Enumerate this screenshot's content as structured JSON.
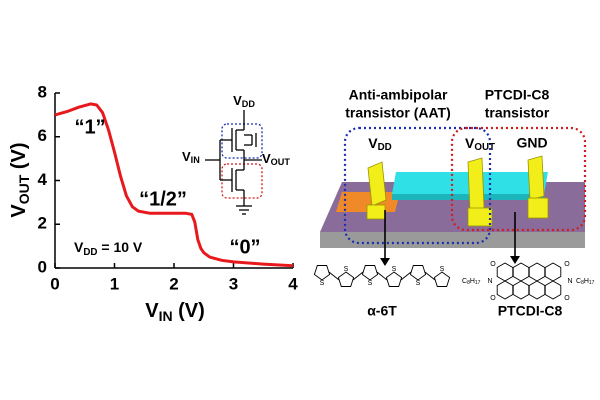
{
  "chart_data": {
    "type": "line",
    "x": [
      0,
      0.2,
      0.4,
      0.6,
      0.7,
      0.8,
      0.9,
      1.0,
      1.1,
      1.2,
      1.3,
      1.4,
      1.6,
      1.8,
      2.0,
      2.2,
      2.3,
      2.35,
      2.4,
      2.45,
      2.5,
      2.6,
      2.8,
      3.0,
      3.5,
      4.0
    ],
    "values": [
      7.0,
      7.15,
      7.35,
      7.5,
      7.45,
      7.1,
      6.3,
      5.3,
      4.2,
      3.3,
      2.8,
      2.6,
      2.5,
      2.5,
      2.5,
      2.5,
      2.45,
      2.1,
      1.3,
      0.9,
      0.7,
      0.5,
      0.35,
      0.28,
      0.18,
      0.1
    ],
    "color": "#e8191c",
    "xlim": [
      0,
      4
    ],
    "ylim": [
      0,
      8
    ],
    "xticks": [
      0,
      1,
      2,
      3,
      4
    ],
    "yticks": [
      0,
      2,
      4,
      6,
      8
    ],
    "x_label": {
      "symbol": "V",
      "subscript": "IN",
      "unit": " (V)"
    },
    "y_label": {
      "symbol": "V",
      "subscript": "OUT",
      "unit": " (V)"
    },
    "annotations": {
      "high": "“1”",
      "half": "“1/2”",
      "low": "“0”",
      "supply": {
        "symbol": "V",
        "subscript": "DD",
        "rest": " = 10 V"
      }
    }
  },
  "diagram": {
    "circuit": {
      "vdd": {
        "symbol": "V",
        "subscript": "DD"
      },
      "vin": {
        "symbol": "V",
        "subscript": "IN"
      },
      "vout": {
        "symbol": "V",
        "subscript": "OUT"
      }
    },
    "device": {
      "aat": [
        "Anti-ambipolar",
        "transistor (AAT)"
      ],
      "ptcdi": [
        "PTCDI-C8",
        "transistor"
      ],
      "vdd": {
        "symbol": "V",
        "subscript": "DD"
      },
      "vout": {
        "symbol": "V",
        "subscript": "OUT"
      },
      "gnd": "GND"
    },
    "molecules": {
      "alpha6t": {
        "name": "α-6T",
        "atom": "S"
      },
      "ptcdi": {
        "name": "PTCDI-C8",
        "n": "N",
        "o": "O",
        "chain": {
          "c": "C",
          "c_count": "8",
          "h": "H",
          "h_count": "17"
        }
      }
    }
  }
}
